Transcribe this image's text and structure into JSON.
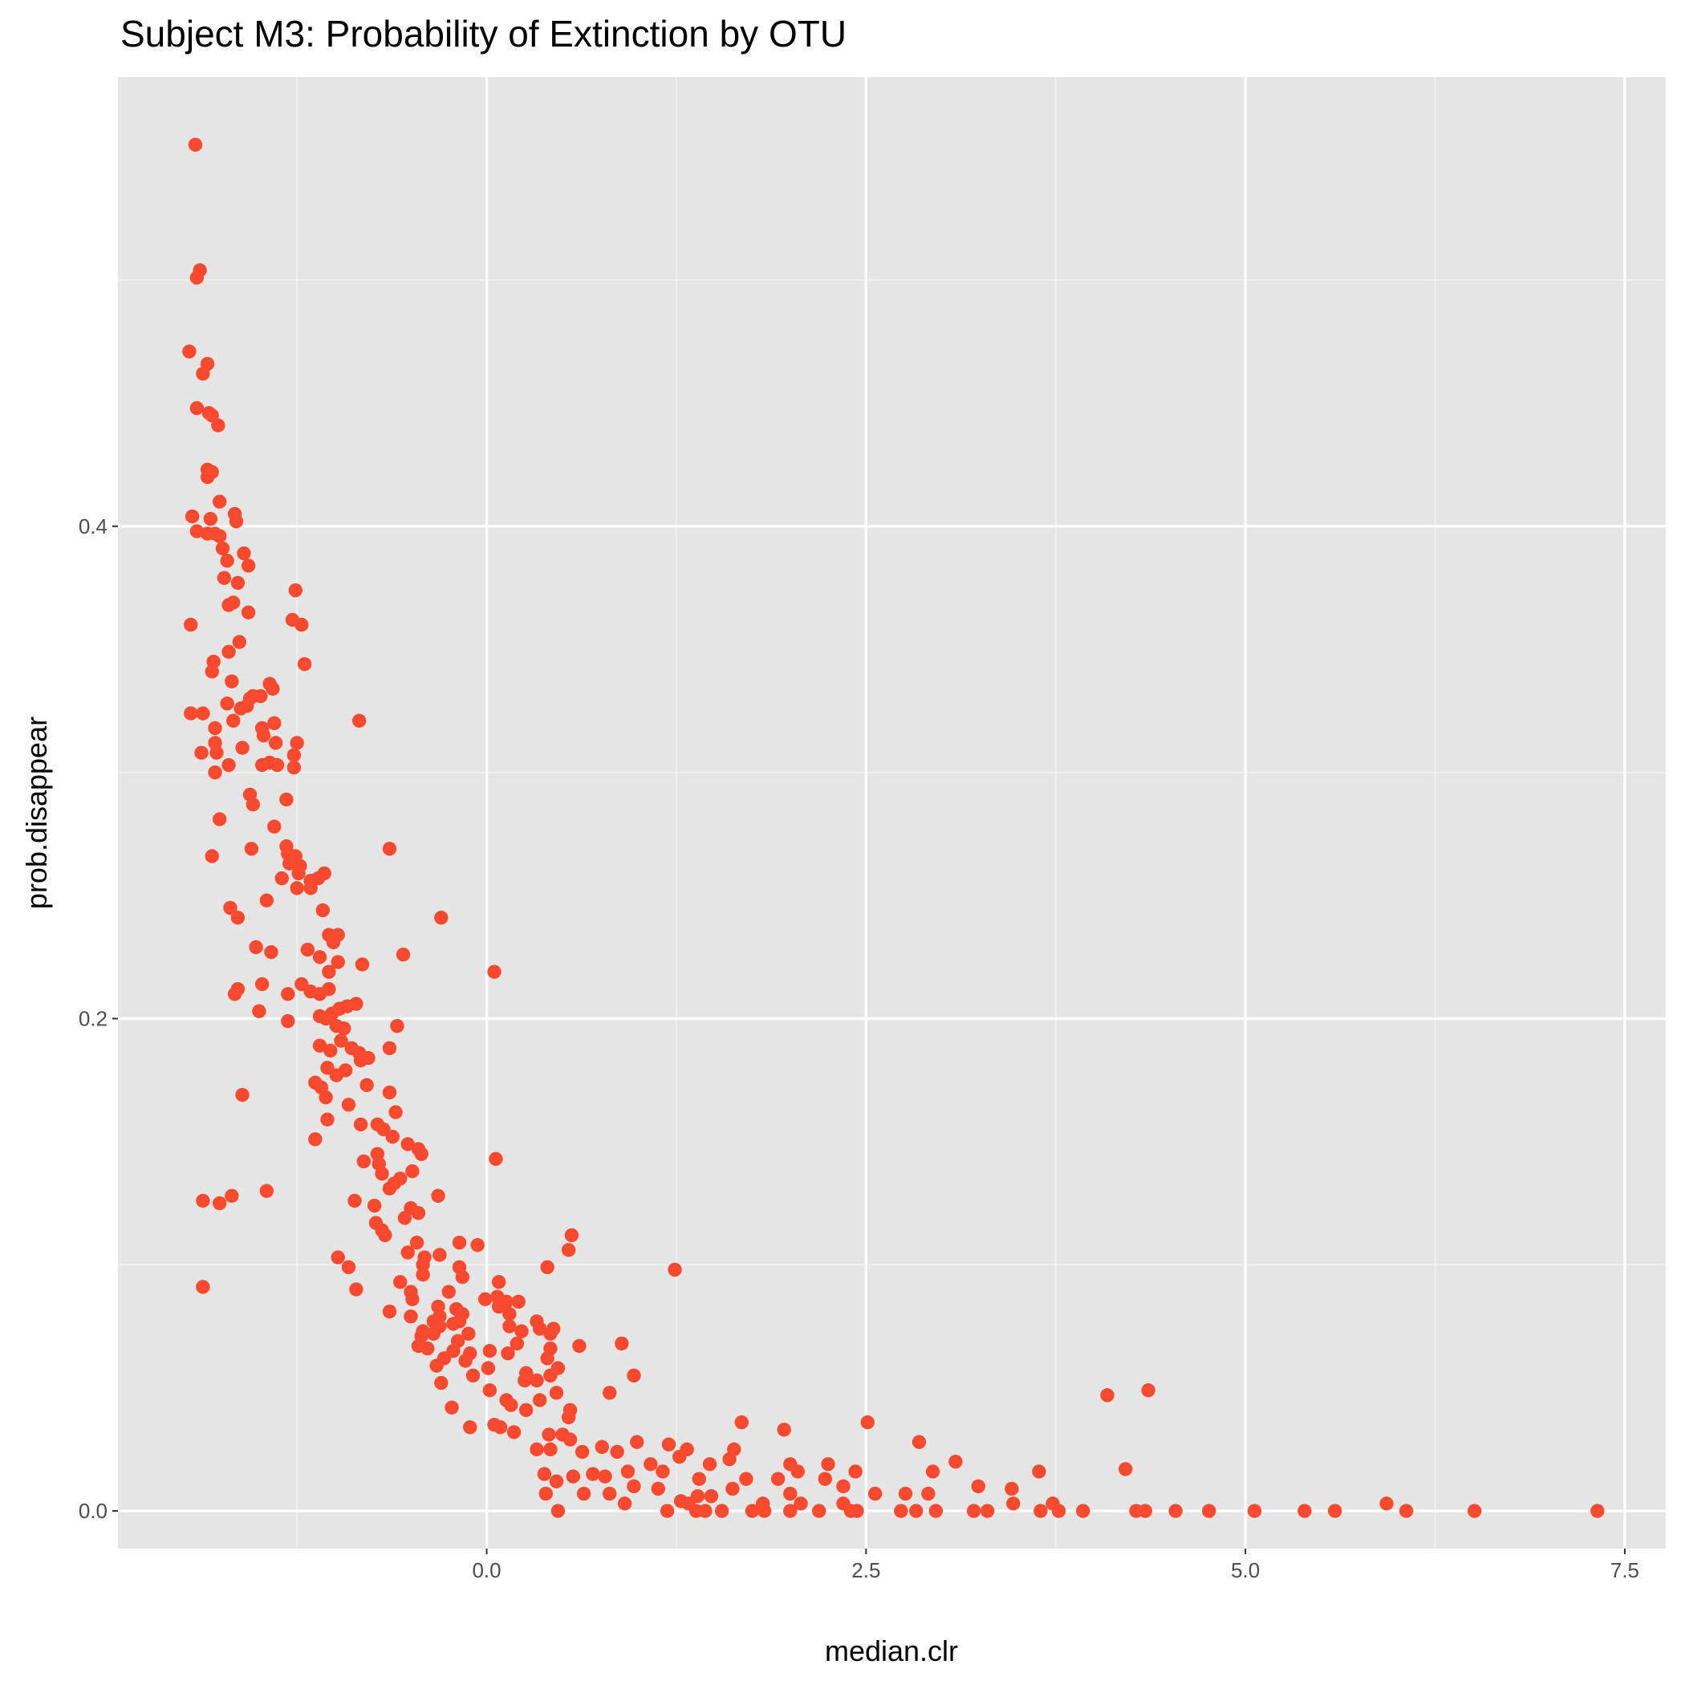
{
  "chart_data": {
    "type": "scatter",
    "title": "Subject M3: Probability of Extinction by OTU",
    "x_label": "median.clr",
    "y_label": "prob.disappear",
    "color": "#f9492f",
    "grid": true,
    "xlim": [
      -2.43,
      7.77
    ],
    "ylim": [
      -0.0153,
      0.5825
    ],
    "xticks": [
      {
        "value": 0,
        "label": "0.0"
      },
      2.5,
      {
        "value": 5,
        "label": "5.0"
      },
      7.5
    ],
    "yticks": [
      {
        "value": 0,
        "label": "0.0"
      },
      0.2,
      0.4
    ],
    "x_minor_ticks": [
      -1.25,
      1.25,
      3.75,
      6.25
    ],
    "y_minor_ticks": [
      0.1,
      0.3,
      0.5
    ],
    "x": [
      -1.92,
      -1.89,
      -1.91,
      -1.96,
      -1.84,
      -1.87,
      -1.91,
      -1.83,
      -1.81,
      -1.77,
      -1.84,
      -1.81,
      -1.84,
      -1.76,
      -1.94,
      -1.82,
      -1.66,
      -1.65,
      -1.91,
      -1.84,
      -1.79,
      -1.76,
      -1.74,
      -1.6,
      -1.71,
      -1.57,
      -1.73,
      -1.64,
      -1.26,
      -1.67,
      -1.7,
      -1.57,
      -1.28,
      -1.22,
      -1.95,
      -1.63,
      -1.7,
      -1.8,
      -1.2,
      -1.81,
      -1.68,
      -1.43,
      -1.41,
      -1.54,
      -1.49,
      -1.56,
      -1.71,
      -1.58,
      -1.62,
      -1.95,
      -1.87,
      -1.67,
      -0.84,
      -1.4,
      -1.79,
      -1.48,
      -1.47,
      -1.79,
      -1.25,
      -1.39,
      -1.61,
      -1.88,
      -1.78,
      -1.27,
      -1.43,
      -1.38,
      -1.48,
      -1.27,
      -1.7,
      -1.79,
      -1.56,
      -1.54,
      -1.32,
      -1.76,
      -1.4,
      -1.32,
      -1.55,
      -0.64,
      -1.81,
      -1.31,
      -1.26,
      -1.3,
      -1.23,
      -1.24,
      -1.07,
      -1.11,
      -1.35,
      -1.16,
      -1.25,
      -1.16,
      -1.45,
      -1.69,
      -1.08,
      -0.3,
      -1.64,
      -1.04,
      -0.98,
      -1.01,
      -1.52,
      -1.18,
      -0.55,
      -1.42,
      -1.1,
      -0.98,
      -0.82,
      -1.04,
      0.05,
      -1.22,
      -1.48,
      -1.64,
      -1.16,
      -1.04,
      -1.31,
      -1.66,
      -1.1,
      -0.86,
      -0.92,
      -1.5,
      -0.97,
      -1.02,
      -1.1,
      -1.06,
      -1.31,
      -0.99,
      -0.59,
      -0.94,
      -0.96,
      -1.1,
      -0.64,
      -0.89,
      -1.03,
      -0.84,
      -0.78,
      -0.83,
      -1.05,
      -0.93,
      -0.99,
      -1.13,
      -0.79,
      -1.09,
      -0.64,
      -1.61,
      -1.06,
      -0.91,
      -0.6,
      -1.05,
      -0.83,
      -0.72,
      -0.68,
      -1.13,
      -0.62,
      -0.52,
      -0.45,
      -0.43,
      -0.72,
      0.06,
      -0.81,
      -0.71,
      -0.49,
      -0.69,
      -0.57,
      -0.61,
      -0.64,
      -1.45,
      -0.32,
      -1.68,
      -0.87,
      -1.87,
      -1.76,
      -0.74,
      -0.5,
      -0.45,
      -0.54,
      -0.73,
      -0.69,
      0.56,
      -0.67,
      -0.18,
      -0.06,
      -0.46,
      0.54,
      -0.52,
      -0.41,
      -0.31,
      -0.98,
      -0.42,
      -0.91,
      -0.18,
      0.4,
      1.24,
      -0.16,
      -0.42,
      0.08,
      -0.57,
      -1.87,
      -0.86,
      -0.25,
      -0.5,
      0.07,
      -0.01,
      -0.49,
      0.13,
      0.21,
      -0.32,
      0.08,
      -0.2,
      -0.16,
      -0.64,
      0.15,
      -0.5,
      -0.31,
      -0.35,
      -0.18,
      0.33,
      -0.22,
      -0.31,
      0.15,
      0.35,
      0.44,
      -0.42,
      -0.35,
      0.23,
      -0.43,
      -0.12,
      0.42,
      0.89,
      0.61,
      -0.19,
      -0.45,
      0.2,
      0.02,
      0.42,
      -0.39,
      -0.22,
      -0.11,
      0.14,
      0.4,
      -0.28,
      -0.14,
      -0.33,
      0.01,
      0.47,
      0.26,
      0.97,
      -0.09,
      0.42,
      0.25,
      0.33,
      -0.3,
      0.02,
      0.81,
      0.46,
      4.09,
      4.36,
      0.13,
      0.35,
      0.16,
      -0.23,
      0.26,
      0.55,
      0.54,
      2.51,
      1.68,
      0.05,
      0.09,
      -0.11,
      0.18,
      0.5,
      1.96,
      0.41,
      0.55,
      0.99,
      2.85,
      1.2,
      1.32,
      0.76,
      0.33,
      0.42,
      1.63,
      0.63,
      1.27,
      0.86,
      1.6,
      1.08,
      3.09,
      1.47,
      2.0,
      2.25,
      4.21,
      1.16,
      2.05,
      2.43,
      0.93,
      3.64,
      2.94,
      0.38,
      0.7,
      0.57,
      0.78,
      1.71,
      1.4,
      2.23,
      1.92,
      0.46,
      2.35,
      3.24,
      3.46,
      0.97,
      1.13,
      1.62,
      0.81,
      0.39,
      0.64,
      2.0,
      2.56,
      2.91,
      2.76,
      1.39,
      1.48,
      1.28,
      2.07,
      5.93,
      3.73,
      3.47,
      0.91,
      1.82,
      2.35,
      0.47,
      1.19,
      1.38,
      1.55,
      1.75,
      2.0,
      2.19,
      2.4,
      2.73,
      2.96,
      3.21,
      3.3,
      3.65,
      3.77,
      3.93,
      4.28,
      4.34,
      4.54,
      4.76,
      5.06,
      5.39,
      5.59,
      6.06,
      6.51,
      7.32,
      1.44,
      1.83,
      2.44,
      2.83,
      1.33
    ],
    "y": [
      0.555,
      0.504,
      0.501,
      0.471,
      0.466,
      0.462,
      0.448,
      0.446,
      0.445,
      0.441,
      0.423,
      0.422,
      0.42,
      0.41,
      0.404,
      0.403,
      0.405,
      0.402,
      0.398,
      0.397,
      0.397,
      0.396,
      0.391,
      0.389,
      0.386,
      0.384,
      0.379,
      0.377,
      0.374,
      0.369,
      0.368,
      0.365,
      0.362,
      0.36,
      0.36,
      0.353,
      0.349,
      0.345,
      0.344,
      0.341,
      0.337,
      0.336,
      0.334,
      0.331,
      0.331,
      0.33,
      0.328,
      0.327,
      0.326,
      0.324,
      0.324,
      0.321,
      0.321,
      0.32,
      0.318,
      0.318,
      0.315,
      0.312,
      0.312,
      0.312,
      0.31,
      0.308,
      0.308,
      0.307,
      0.304,
      0.303,
      0.303,
      0.302,
      0.303,
      0.3,
      0.291,
      0.287,
      0.289,
      0.281,
      0.278,
      0.27,
      0.269,
      0.269,
      0.266,
      0.267,
      0.266,
      0.263,
      0.262,
      0.259,
      0.259,
      0.257,
      0.257,
      0.256,
      0.253,
      0.253,
      0.248,
      0.245,
      0.244,
      0.241,
      0.241,
      0.234,
      0.234,
      0.231,
      0.229,
      0.228,
      0.226,
      0.227,
      0.225,
      0.223,
      0.222,
      0.219,
      0.219,
      0.214,
      0.214,
      0.212,
      0.211,
      0.212,
      0.21,
      0.21,
      0.21,
      0.206,
      0.205,
      0.203,
      0.204,
      0.202,
      0.201,
      0.2,
      0.199,
      0.197,
      0.197,
      0.196,
      0.191,
      0.189,
      0.188,
      0.188,
      0.187,
      0.186,
      0.184,
      0.183,
      0.18,
      0.179,
      0.177,
      0.174,
      0.173,
      0.172,
      0.17,
      0.169,
      0.168,
      0.165,
      0.162,
      0.159,
      0.157,
      0.157,
      0.155,
      0.151,
      0.152,
      0.149,
      0.147,
      0.145,
      0.145,
      0.143,
      0.142,
      0.141,
      0.138,
      0.137,
      0.135,
      0.133,
      0.131,
      0.13,
      0.128,
      0.128,
      0.126,
      0.126,
      0.125,
      0.124,
      0.123,
      0.121,
      0.119,
      0.117,
      0.114,
      0.112,
      0.112,
      0.109,
      0.108,
      0.109,
      0.106,
      0.105,
      0.103,
      0.104,
      0.103,
      0.1,
      0.099,
      0.099,
      0.099,
      0.098,
      0.095,
      0.096,
      0.093,
      0.093,
      0.091,
      0.09,
      0.089,
      0.089,
      0.087,
      0.086,
      0.086,
      0.085,
      0.085,
      0.083,
      0.083,
      0.082,
      0.08,
      0.081,
      0.08,
      0.079,
      0.079,
      0.077,
      0.077,
      0.077,
      0.076,
      0.075,
      0.075,
      0.074,
      0.074,
      0.073,
      0.072,
      0.073,
      0.071,
      0.072,
      0.072,
      0.068,
      0.067,
      0.069,
      0.067,
      0.068,
      0.065,
      0.066,
      0.066,
      0.065,
      0.064,
      0.064,
      0.062,
      0.062,
      0.061,
      0.059,
      0.058,
      0.058,
      0.056,
      0.055,
      0.055,
      0.055,
      0.053,
      0.053,
      0.052,
      0.049,
      0.048,
      0.048,
      0.047,
      0.049,
      0.045,
      0.045,
      0.043,
      0.042,
      0.041,
      0.041,
      0.038,
      0.036,
      0.036,
      0.035,
      0.034,
      0.034,
      0.032,
      0.031,
      0.033,
      0.031,
      0.029,
      0.028,
      0.028,
      0.027,
      0.025,
      0.026,
      0.025,
      0.025,
      0.025,
      0.024,
      0.022,
      0.024,
      0.021,
      0.019,
      0.02,
      0.019,
      0.019,
      0.019,
      0.017,
      0.016,
      0.016,
      0.016,
      0.016,
      0.016,
      0.016,
      0.015,
      0.015,
      0.014,
      0.014,
      0.013,
      0.013,
      0.013,
      0.013,
      0.012,
      0.01,
      0.01,
      0.009,
      0.01,
      0.009,
      0.009,
      0.007,
      0.007,
      0.007,
      0.007,
      0.007,
      0.007,
      0.007,
      0.006,
      0.006,
      0.004,
      0.003,
      0.003,
      0.003,
      0.003,
      0.003,
      0.003,
      0.003,
      0,
      0,
      0,
      0,
      0,
      0,
      0,
      0,
      0,
      0,
      0,
      0,
      0,
      0,
      0,
      0,
      0,
      0,
      0,
      0,
      0,
      0,
      0,
      0,
      0,
      0,
      0,
      0,
      0,
      0.003
    ]
  }
}
